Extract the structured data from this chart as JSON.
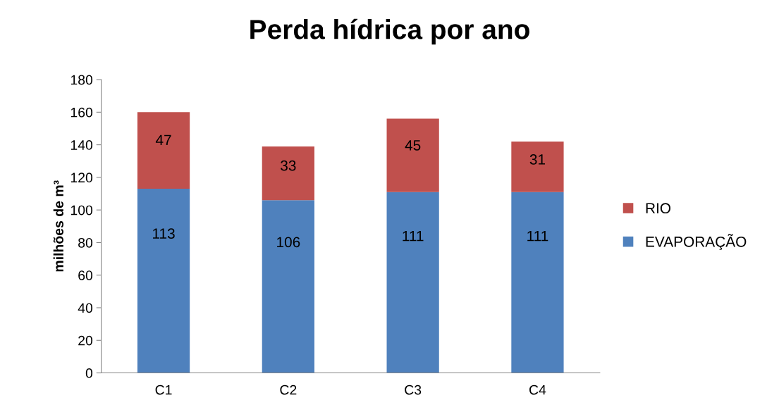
{
  "chart_data": {
    "type": "bar",
    "title": "Perda hídrica por ano",
    "ylabel": "milhões de m³",
    "categories": [
      "C1",
      "C2",
      "C3",
      "C4"
    ],
    "stacked": true,
    "series": [
      {
        "name": "EVAPORAÇÃO",
        "color": "#4f81bd",
        "values": [
          113,
          106,
          111,
          111
        ]
      },
      {
        "name": "RIO",
        "color": "#c0504d",
        "values": [
          47,
          33,
          45,
          31
        ]
      }
    ],
    "ylim": [
      0,
      180
    ],
    "yticks": [
      0,
      20,
      40,
      60,
      80,
      100,
      120,
      140,
      160,
      180
    ],
    "data_labels": true,
    "legend": "right",
    "grid": false
  }
}
